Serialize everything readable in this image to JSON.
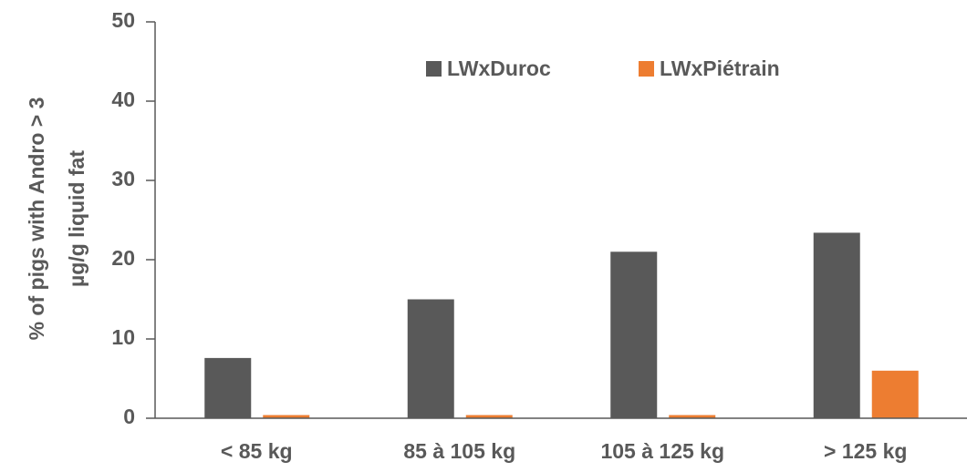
{
  "chart_data": {
    "type": "bar",
    "ylabel": [
      "% of pigs with Andro > 3",
      "µg/g liquid fat"
    ],
    "categories": [
      "< 85 kg",
      "85 à 105 kg",
      "105 à 125 kg",
      "> 125 kg"
    ],
    "series": [
      {
        "name": "LWxDuroc",
        "color": "#595959",
        "values": [
          7.6,
          15,
          21,
          23.4
        ]
      },
      {
        "name": "LWxPiétrain",
        "color": "#ed7d31",
        "values": [
          0.4,
          0.4,
          0.4,
          6
        ]
      }
    ],
    "ylim": [
      0,
      50
    ],
    "yticks": [
      0,
      10,
      20,
      30,
      40,
      50
    ],
    "grid": false,
    "legend": "top"
  }
}
